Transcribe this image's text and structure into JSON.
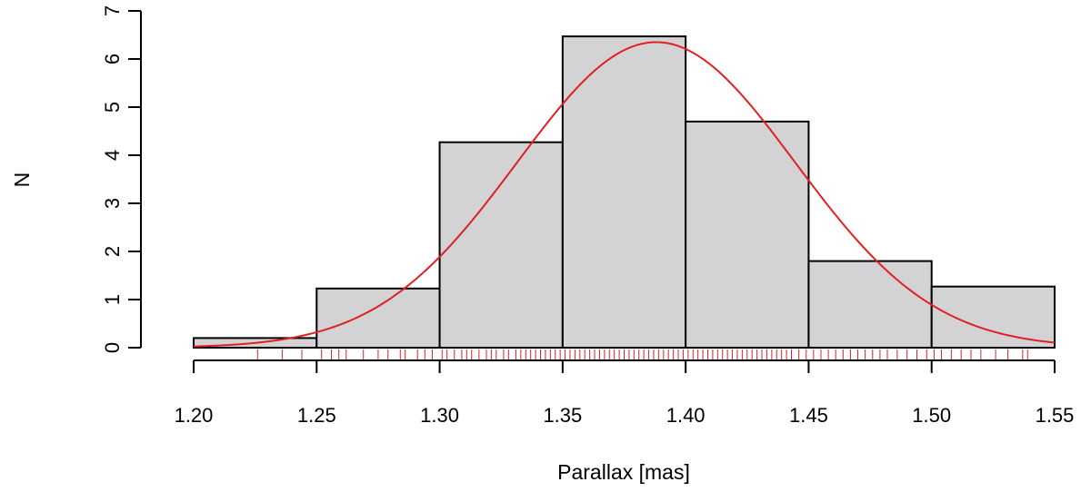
{
  "chart_data": {
    "type": "bar",
    "subtype": "histogram",
    "title": "",
    "xlabel": "Parallax [mas]",
    "ylabel": "N",
    "xlim": [
      1.2,
      1.55
    ],
    "ylim": [
      0,
      7
    ],
    "x_ticks": [
      "1.20",
      "1.25",
      "1.30",
      "1.35",
      "1.40",
      "1.45",
      "1.50",
      "1.55"
    ],
    "y_ticks": [
      "0",
      "1",
      "2",
      "3",
      "4",
      "5",
      "6",
      "7"
    ],
    "bins": [
      {
        "start": 1.2,
        "end": 1.25,
        "value": 0.2
      },
      {
        "start": 1.25,
        "end": 1.3,
        "value": 1.23
      },
      {
        "start": 1.3,
        "end": 1.35,
        "value": 4.27
      },
      {
        "start": 1.35,
        "end": 1.4,
        "value": 6.47
      },
      {
        "start": 1.4,
        "end": 1.45,
        "value": 4.7
      },
      {
        "start": 1.45,
        "end": 1.5,
        "value": 1.8
      },
      {
        "start": 1.5,
        "end": 1.55,
        "value": 1.27
      }
    ],
    "curve": {
      "type": "gaussian",
      "mean": 1.388,
      "sigma": 0.0565,
      "peak": 6.35
    },
    "rug": [
      1.226,
      1.236,
      1.244,
      1.252,
      1.256,
      1.259,
      1.262,
      1.269,
      1.275,
      1.279,
      1.284,
      1.286,
      1.291,
      1.294,
      1.297,
      1.301,
      1.303,
      1.306,
      1.309,
      1.311,
      1.313,
      1.316,
      1.319,
      1.321,
      1.323,
      1.326,
      1.328,
      1.331,
      1.333,
      1.335,
      1.337,
      1.339,
      1.341,
      1.343,
      1.345,
      1.347,
      1.349,
      1.351,
      1.353,
      1.355,
      1.357,
      1.359,
      1.361,
      1.363,
      1.365,
      1.367,
      1.369,
      1.371,
      1.373,
      1.375,
      1.377,
      1.379,
      1.381,
      1.383,
      1.385,
      1.387,
      1.389,
      1.391,
      1.393,
      1.395,
      1.397,
      1.399,
      1.401,
      1.403,
      1.405,
      1.407,
      1.409,
      1.411,
      1.413,
      1.415,
      1.417,
      1.419,
      1.421,
      1.423,
      1.425,
      1.427,
      1.429,
      1.431,
      1.433,
      1.435,
      1.437,
      1.439,
      1.441,
      1.443,
      1.446,
      1.449,
      1.452,
      1.455,
      1.458,
      1.461,
      1.464,
      1.467,
      1.47,
      1.473,
      1.476,
      1.479,
      1.482,
      1.486,
      1.49,
      1.494,
      1.498,
      1.501,
      1.504,
      1.508,
      1.512,
      1.516,
      1.52,
      1.526,
      1.531,
      1.537,
      1.539
    ],
    "grid": false,
    "legend": "none",
    "colors": {
      "bar_fill": "#d3d3d6",
      "bar_stroke": "#000000",
      "curve": "#e02020",
      "rug": "#e02020"
    }
  }
}
